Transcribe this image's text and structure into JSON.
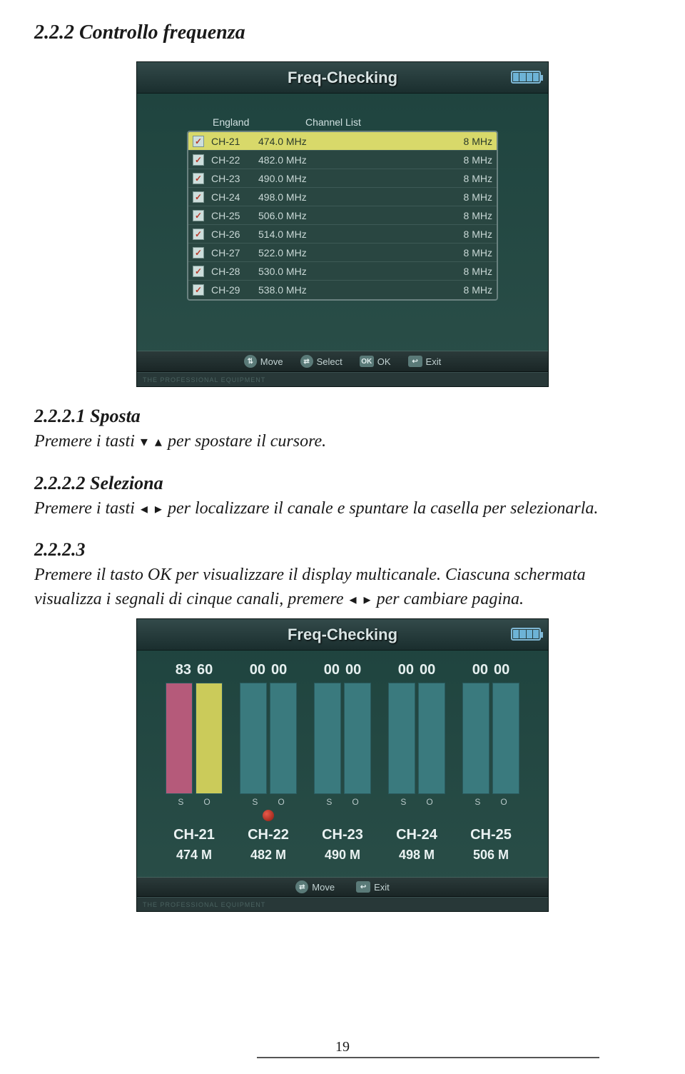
{
  "headings": {
    "main": "2.2.2 Controllo frequenza",
    "s1_title": "2.2.2.1 Sposta",
    "s1_body_a": "Premere i tasti ",
    "s1_body_b": " per spostare il cursore.",
    "s2_title": "2.2.2.2 Seleziona",
    "s2_body_a": "Premere i tasti ",
    "s2_body_b": " per localizzare il canale e spuntare la casella per selezionarla.",
    "s3_title": "2.2.2.3",
    "s3_body_a": "Premere il tasto OK per visualizzare il display multicanale. Ciascuna schermata visualizza i segnali di cinque canali, premere ",
    "s3_body_b": " per cambiare pagina."
  },
  "screen1": {
    "title": "Freq-Checking",
    "header_left": "England",
    "header_right": "Channel List",
    "rows": [
      {
        "ch": "CH-21",
        "freq": "474.0 MHz",
        "bw": "8 MHz",
        "sel": true
      },
      {
        "ch": "CH-22",
        "freq": "482.0 MHz",
        "bw": "8 MHz",
        "sel": false
      },
      {
        "ch": "CH-23",
        "freq": "490.0 MHz",
        "bw": "8 MHz",
        "sel": false
      },
      {
        "ch": "CH-24",
        "freq": "498.0 MHz",
        "bw": "8 MHz",
        "sel": false
      },
      {
        "ch": "CH-25",
        "freq": "506.0 MHz",
        "bw": "8 MHz",
        "sel": false
      },
      {
        "ch": "CH-26",
        "freq": "514.0 MHz",
        "bw": "8 MHz",
        "sel": false
      },
      {
        "ch": "CH-27",
        "freq": "522.0 MHz",
        "bw": "8 MHz",
        "sel": false
      },
      {
        "ch": "CH-28",
        "freq": "530.0 MHz",
        "bw": "8 MHz",
        "sel": false
      },
      {
        "ch": "CH-29",
        "freq": "538.0 MHz",
        "bw": "8 MHz",
        "sel": false
      }
    ],
    "hints": {
      "move": "Move",
      "select": "Select",
      "ok": "OK",
      "exit": "Exit"
    },
    "brand_tag": "THE PROFESSIONAL EQUIPMENT"
  },
  "screen2": {
    "title": "Freq-Checking",
    "pairs": [
      {
        "s": "83",
        "o": "60",
        "s_h": 100,
        "o_h": 100,
        "s_color": "#b55a7a",
        "o_color": "#cbcb5a",
        "dot": false
      },
      {
        "s": "00",
        "o": "00",
        "s_h": 100,
        "o_h": 100,
        "s_color": "#3a7a7e",
        "o_color": "#3a7a7e",
        "dot": true
      },
      {
        "s": "00",
        "o": "00",
        "s_h": 100,
        "o_h": 100,
        "s_color": "#3a7a7e",
        "o_color": "#3a7a7e",
        "dot": false
      },
      {
        "s": "00",
        "o": "00",
        "s_h": 100,
        "o_h": 100,
        "s_color": "#3a7a7e",
        "o_color": "#3a7a7e",
        "dot": false
      },
      {
        "s": "00",
        "o": "00",
        "s_h": 100,
        "o_h": 100,
        "s_color": "#3a7a7e",
        "o_color": "#3a7a7e",
        "dot": false
      }
    ],
    "so_label_s": "S",
    "so_label_o": "O",
    "channels": [
      "CH-21",
      "CH-22",
      "CH-23",
      "CH-24",
      "CH-25"
    ],
    "freqs": [
      "474 M",
      "482 M",
      "490 M",
      "498 M",
      "506 M"
    ],
    "hints": {
      "move": "Move",
      "exit": "Exit"
    },
    "brand_tag": "THE PROFESSIONAL EQUIPMENT"
  },
  "page_number": "19"
}
